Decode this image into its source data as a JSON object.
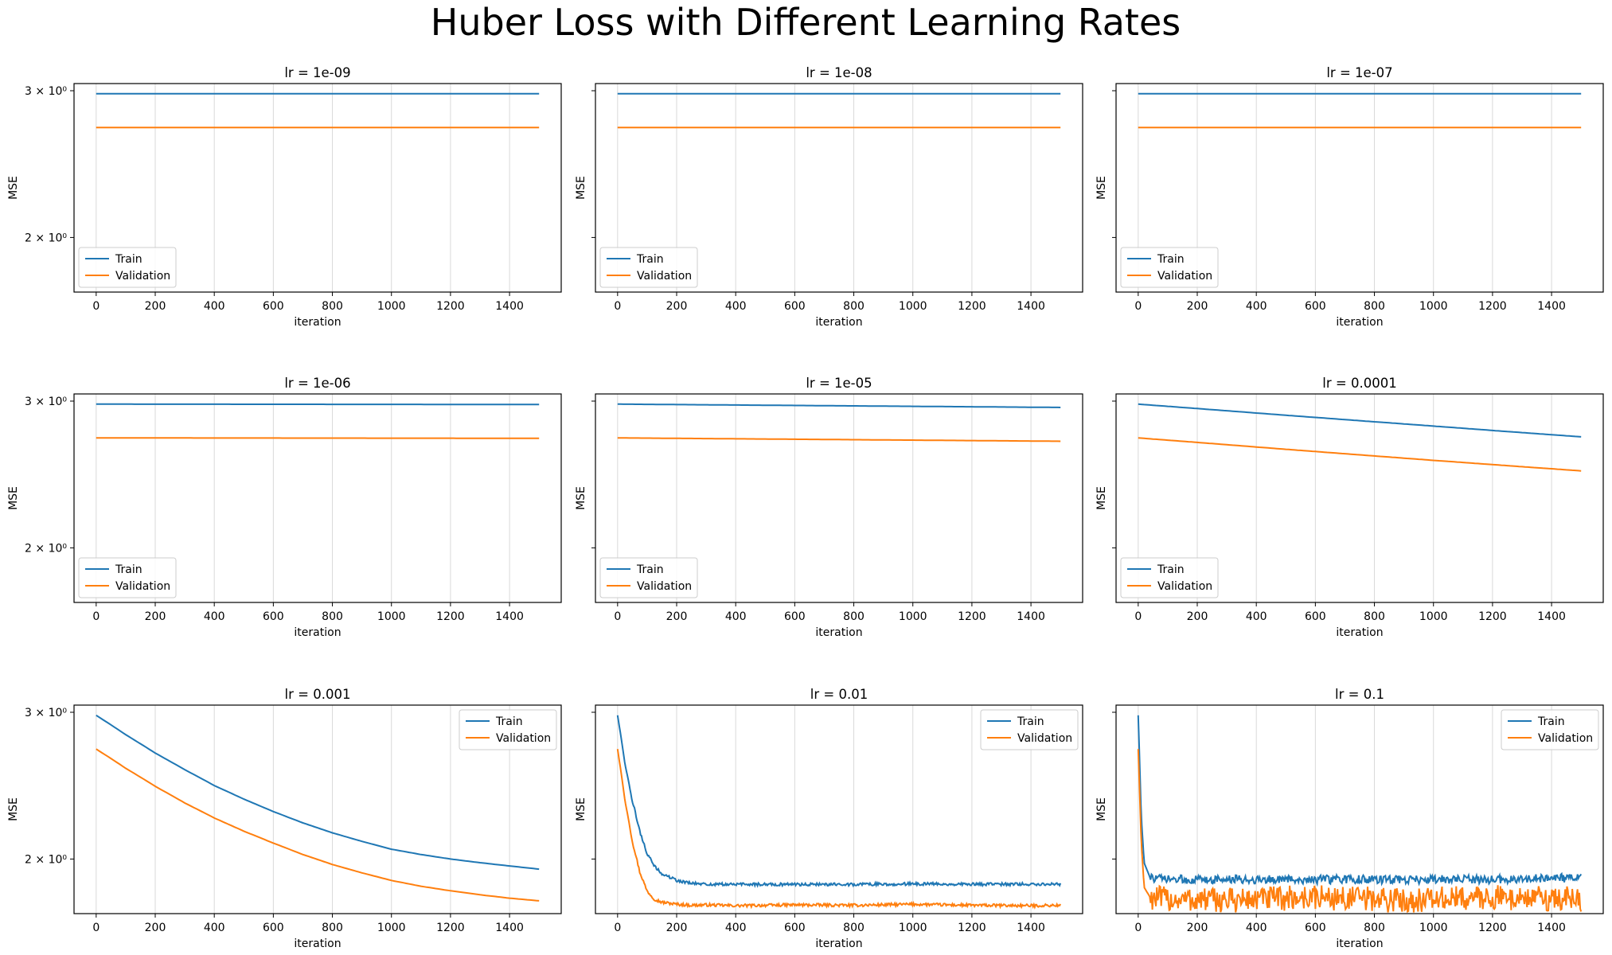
{
  "figure": {
    "title": "Huber Loss with Different Learning Rates"
  },
  "colors": {
    "train": "#1f77b4",
    "validation": "#ff7f0e",
    "grid": "#d9d9d9"
  },
  "chart_data": [
    {
      "type": "line",
      "title": "lr = 1e-09",
      "xlabel": "iteration",
      "ylabel": "MSE",
      "yscale": "log",
      "xlim": [
        -75,
        1575
      ],
      "ylim": [
        1.72,
        3.06
      ],
      "xticks": [
        0,
        200,
        400,
        600,
        800,
        1000,
        1200,
        1400
      ],
      "yticks": [
        {
          "value": 2,
          "label": "2 × 10⁰"
        },
        {
          "value": 3,
          "label": "3 × 10⁰"
        }
      ],
      "legend": "lower left",
      "grid": "x",
      "series": [
        {
          "name": "Train",
          "x": [
            0,
            1500
          ],
          "y": [
            2.975,
            2.975
          ]
        },
        {
          "name": "Validation",
          "x": [
            0,
            1500
          ],
          "y": [
            2.71,
            2.71
          ]
        }
      ]
    },
    {
      "type": "line",
      "title": "lr = 1e-08",
      "xlabel": "iteration",
      "ylabel": "MSE",
      "yscale": "log",
      "xlim": [
        -75,
        1575
      ],
      "ylim": [
        1.72,
        3.06
      ],
      "xticks": [
        0,
        200,
        400,
        600,
        800,
        1000,
        1200,
        1400
      ],
      "yticks": [],
      "legend": "lower left",
      "grid": "x",
      "series": [
        {
          "name": "Train",
          "x": [
            0,
            1500
          ],
          "y": [
            2.975,
            2.975
          ]
        },
        {
          "name": "Validation",
          "x": [
            0,
            1500
          ],
          "y": [
            2.71,
            2.71
          ]
        }
      ]
    },
    {
      "type": "line",
      "title": "lr = 1e-07",
      "xlabel": "iteration",
      "ylabel": "MSE",
      "yscale": "log",
      "xlim": [
        -75,
        1575
      ],
      "ylim": [
        1.72,
        3.06
      ],
      "xticks": [
        0,
        200,
        400,
        600,
        800,
        1000,
        1200,
        1400
      ],
      "yticks": [],
      "legend": "lower left",
      "grid": "x",
      "series": [
        {
          "name": "Train",
          "x": [
            0,
            1500
          ],
          "y": [
            2.975,
            2.975
          ]
        },
        {
          "name": "Validation",
          "x": [
            0,
            1500
          ],
          "y": [
            2.71,
            2.71
          ]
        }
      ]
    },
    {
      "type": "line",
      "title": "lr = 1e-06",
      "xlabel": "iteration",
      "ylabel": "MSE",
      "yscale": "log",
      "xlim": [
        -75,
        1575
      ],
      "ylim": [
        1.72,
        3.06
      ],
      "xticks": [
        0,
        200,
        400,
        600,
        800,
        1000,
        1200,
        1400
      ],
      "yticks": [
        {
          "value": 2,
          "label": "2 × 10⁰"
        },
        {
          "value": 3,
          "label": "3 × 10⁰"
        }
      ],
      "legend": "lower left",
      "grid": "x",
      "series": [
        {
          "name": "Train",
          "x": [
            0,
            1500
          ],
          "y": [
            2.975,
            2.972
          ]
        },
        {
          "name": "Validation",
          "x": [
            0,
            1500
          ],
          "y": [
            2.71,
            2.707
          ]
        }
      ]
    },
    {
      "type": "line",
      "title": "lr = 1e-05",
      "xlabel": "iteration",
      "ylabel": "MSE",
      "yscale": "log",
      "xlim": [
        -75,
        1575
      ],
      "ylim": [
        1.72,
        3.06
      ],
      "xticks": [
        0,
        200,
        400,
        600,
        800,
        1000,
        1200,
        1400
      ],
      "yticks": [],
      "legend": "lower left",
      "grid": "x",
      "series": [
        {
          "name": "Train",
          "x": [
            0,
            1500
          ],
          "y": [
            2.975,
            2.948
          ]
        },
        {
          "name": "Validation",
          "x": [
            0,
            1500
          ],
          "y": [
            2.71,
            2.685
          ]
        }
      ]
    },
    {
      "type": "line",
      "title": "lr = 0.0001",
      "xlabel": "iteration",
      "ylabel": "MSE",
      "yscale": "log",
      "xlim": [
        -75,
        1575
      ],
      "ylim": [
        1.72,
        3.06
      ],
      "xticks": [
        0,
        200,
        400,
        600,
        800,
        1000,
        1200,
        1400
      ],
      "yticks": [],
      "legend": "lower left",
      "grid": "x",
      "series": [
        {
          "name": "Train",
          "x": [
            0,
            250,
            500,
            750,
            1000,
            1250,
            1500
          ],
          "y": [
            2.975,
            2.93,
            2.885,
            2.842,
            2.8,
            2.758,
            2.718
          ]
        },
        {
          "name": "Validation",
          "x": [
            0,
            250,
            500,
            750,
            1000,
            1250,
            1500
          ],
          "y": [
            2.71,
            2.668,
            2.626,
            2.586,
            2.547,
            2.51,
            2.474
          ]
        }
      ]
    },
    {
      "type": "line",
      "title": "lr = 0.001",
      "xlabel": "iteration",
      "ylabel": "MSE",
      "yscale": "log",
      "xlim": [
        -75,
        1575
      ],
      "ylim": [
        1.72,
        3.06
      ],
      "xticks": [
        0,
        200,
        400,
        600,
        800,
        1000,
        1200,
        1400
      ],
      "yticks": [
        {
          "value": 2,
          "label": "2 × 10⁰"
        },
        {
          "value": 3,
          "label": "3 × 10⁰"
        }
      ],
      "legend": "upper right",
      "grid": "x",
      "series": [
        {
          "name": "Train",
          "x": [
            0,
            100,
            200,
            300,
            400,
            500,
            600,
            700,
            800,
            900,
            1000,
            1100,
            1200,
            1300,
            1400,
            1500
          ],
          "y": [
            2.975,
            2.82,
            2.68,
            2.56,
            2.45,
            2.36,
            2.28,
            2.21,
            2.15,
            2.1,
            2.055,
            2.025,
            2.0,
            1.98,
            1.962,
            1.945
          ]
        },
        {
          "name": "Validation",
          "x": [
            0,
            100,
            200,
            300,
            400,
            500,
            600,
            700,
            800,
            900,
            1000,
            1100,
            1200,
            1300,
            1400,
            1500
          ],
          "y": [
            2.71,
            2.57,
            2.445,
            2.335,
            2.24,
            2.16,
            2.09,
            2.025,
            1.97,
            1.925,
            1.885,
            1.855,
            1.832,
            1.812,
            1.795,
            1.782
          ]
        }
      ]
    },
    {
      "type": "line",
      "title": "lr = 0.01",
      "xlabel": "iteration",
      "ylabel": "MSE",
      "yscale": "log",
      "xlim": [
        -75,
        1575
      ],
      "ylim": [
        1.72,
        3.06
      ],
      "xticks": [
        0,
        200,
        400,
        600,
        800,
        1000,
        1200,
        1400
      ],
      "yticks": [],
      "legend": "upper right",
      "grid": "x",
      "series": [
        {
          "name": "Train",
          "x": [
            0,
            25,
            50,
            75,
            100,
            125,
            150,
            200,
            250,
            300,
            400,
            600,
            800,
            1000,
            1200,
            1400,
            1500
          ],
          "y": [
            2.975,
            2.6,
            2.35,
            2.16,
            2.03,
            1.96,
            1.92,
            1.885,
            1.87,
            1.865,
            1.865,
            1.865,
            1.865,
            1.867,
            1.865,
            1.866,
            1.866
          ]
        },
        {
          "name": "Validation",
          "x": [
            0,
            25,
            50,
            75,
            100,
            125,
            150,
            200,
            250,
            300,
            400,
            600,
            800,
            1000,
            1200,
            1400,
            1500
          ],
          "y": [
            2.71,
            2.35,
            2.1,
            1.93,
            1.83,
            1.79,
            1.775,
            1.765,
            1.76,
            1.762,
            1.758,
            1.762,
            1.76,
            1.765,
            1.76,
            1.758,
            1.76
          ]
        }
      ]
    },
    {
      "type": "line",
      "title": "lr = 0.1",
      "xlabel": "iteration",
      "ylabel": "MSE",
      "yscale": "log",
      "xlim": [
        -75,
        1575
      ],
      "ylim": [
        1.72,
        3.06
      ],
      "xticks": [
        0,
        200,
        400,
        600,
        800,
        1000,
        1200,
        1400
      ],
      "yticks": [],
      "legend": "upper right",
      "grid": "x",
      "series": [
        {
          "name": "Train",
          "x": [
            0,
            10,
            20,
            40,
            100,
            300,
            600,
            900,
            1200,
            1500
          ],
          "y": [
            2.975,
            2.25,
            1.98,
            1.9,
            1.89,
            1.89,
            1.89,
            1.89,
            1.89,
            1.9
          ]
        },
        {
          "name": "Validation",
          "x": [
            0,
            10,
            20,
            40,
            100,
            300,
            600,
            900,
            1200,
            1500
          ],
          "y": [
            2.71,
            2.1,
            1.85,
            1.8,
            1.79,
            1.785,
            1.8,
            1.785,
            1.8,
            1.79
          ]
        }
      ]
    }
  ]
}
